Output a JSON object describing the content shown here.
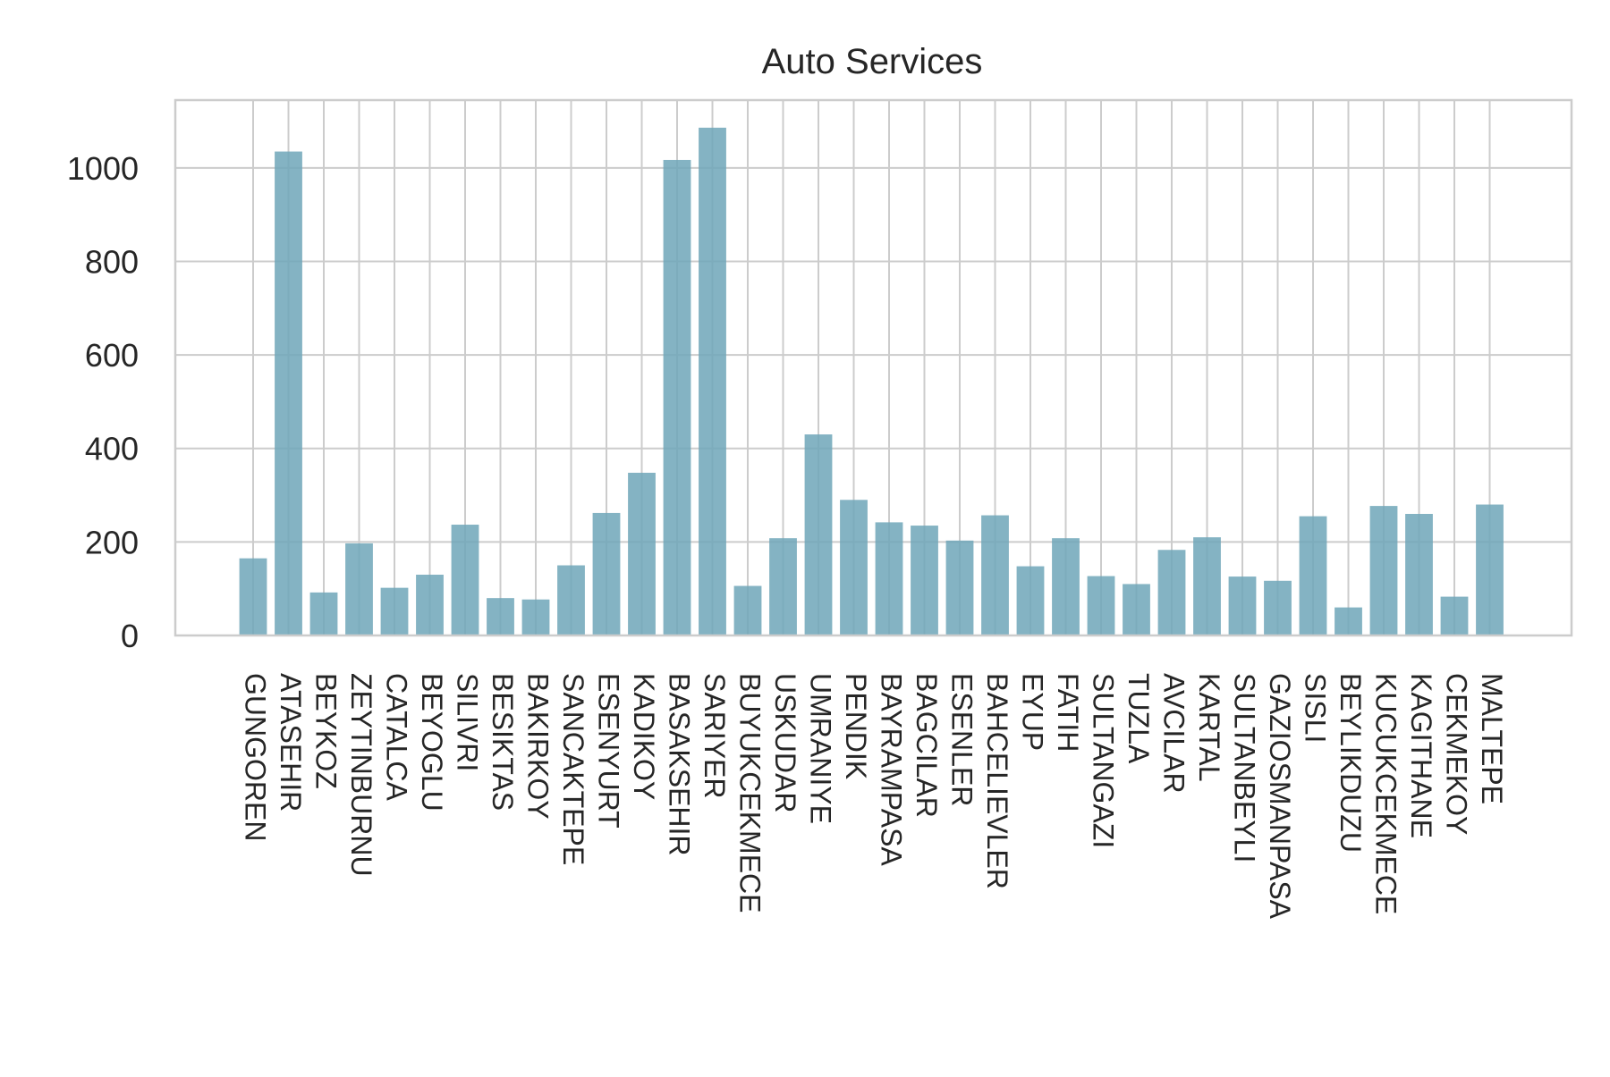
{
  "chart_data": {
    "type": "bar",
    "title": "Auto Services",
    "xlabel": "",
    "ylabel": "",
    "ylim": [
      0,
      1145
    ],
    "yticks": [
      0,
      200,
      400,
      600,
      800,
      1000
    ],
    "grid": true,
    "bar_color": "#6fa6b9",
    "categories": [
      "GUNGOREN",
      "ATASEHIR",
      "BEYKOZ",
      "ZEYTINBURNU",
      "CATALCA",
      "BEYOGLU",
      "SILIVRI",
      "BESIKTAS",
      "BAKIRKOY",
      "SANCAKTEPE",
      "ESENYURT",
      "KADIKOY",
      "BASAKSEHIR",
      "SARIYER",
      "BUYUKCEKMECE",
      "USKUDAR",
      "UMRANIYE",
      "PENDIK",
      "BAYRAMPASA",
      "BAGCILAR",
      "ESENLER",
      "BAHCELIEVLER",
      "EYUP",
      "FATIH",
      "SULTANGAZI",
      "TUZLA",
      "AVCILAR",
      "KARTAL",
      "SULTANBEYLI",
      "GAZIOSMANPASA",
      "SISLI",
      "BEYLIKDUZU",
      "KUCUKCEKMECE",
      "KAGITHANE",
      "CEKMEKOY",
      "MALTEPE"
    ],
    "values": [
      165,
      1035,
      92,
      197,
      102,
      130,
      237,
      80,
      77,
      150,
      262,
      348,
      1017,
      1086,
      106,
      208,
      430,
      290,
      242,
      235,
      203,
      257,
      148,
      208,
      127,
      110,
      183,
      210,
      126,
      117,
      255,
      60,
      277,
      260,
      83,
      280
    ]
  }
}
